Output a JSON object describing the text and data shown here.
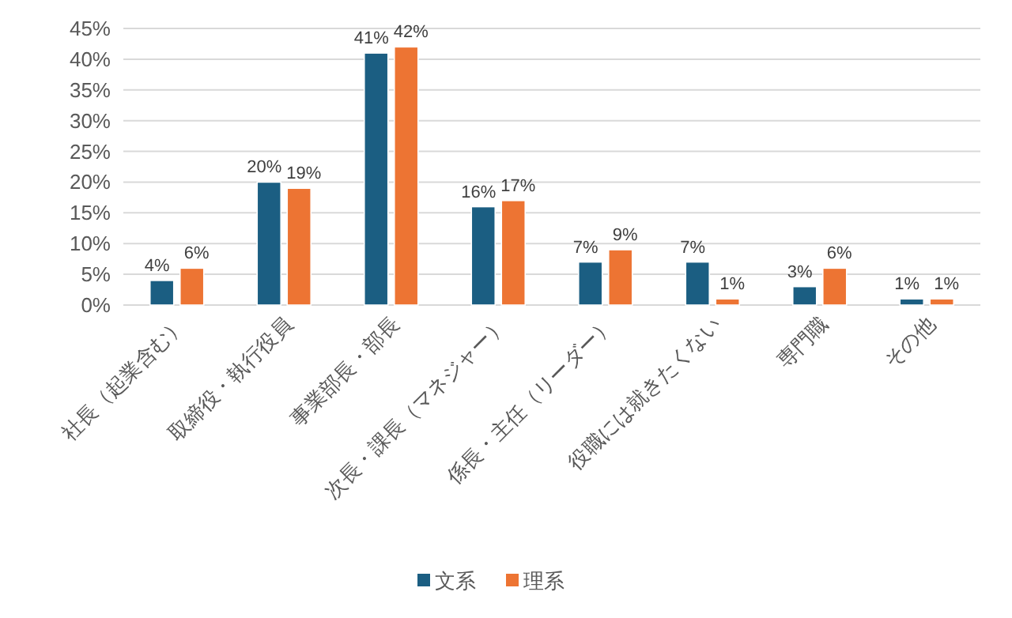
{
  "chart_data": {
    "type": "bar",
    "categories": [
      "社長（起業含む）",
      "取締役・執行役員",
      "事業部長・部長",
      "次長・課長（マネジャー）",
      "係長・主任（リーダー）",
      "役職には就きたくない",
      "専門職",
      "その他"
    ],
    "series": [
      {
        "name": "文系",
        "color": "#1b5e82",
        "values": [
          4,
          20,
          41,
          16,
          7,
          7,
          3,
          1
        ],
        "value_labels": [
          "4%",
          "20%",
          "41%",
          "16%",
          "7%",
          "7%",
          "3%",
          "1%"
        ]
      },
      {
        "name": "理系",
        "color": "#ed7433",
        "values": [
          6,
          19,
          42,
          17,
          9,
          1,
          6,
          1
        ],
        "value_labels": [
          "6%",
          "19%",
          "42%",
          "17%",
          "9%",
          "1%",
          "6%",
          "1%"
        ]
      }
    ],
    "ylim": [
      0,
      45
    ],
    "yticks": [
      {
        "value": 0,
        "label": "0%"
      },
      {
        "value": 5,
        "label": "5%"
      },
      {
        "value": 10,
        "label": "10%"
      },
      {
        "value": 15,
        "label": "15%"
      },
      {
        "value": 20,
        "label": "20%"
      },
      {
        "value": 25,
        "label": "25%"
      },
      {
        "value": 30,
        "label": "30%"
      },
      {
        "value": 35,
        "label": "35%"
      },
      {
        "value": 40,
        "label": "40%"
      },
      {
        "value": 45,
        "label": "45%"
      }
    ],
    "grid": "y",
    "legend": "bottom"
  }
}
